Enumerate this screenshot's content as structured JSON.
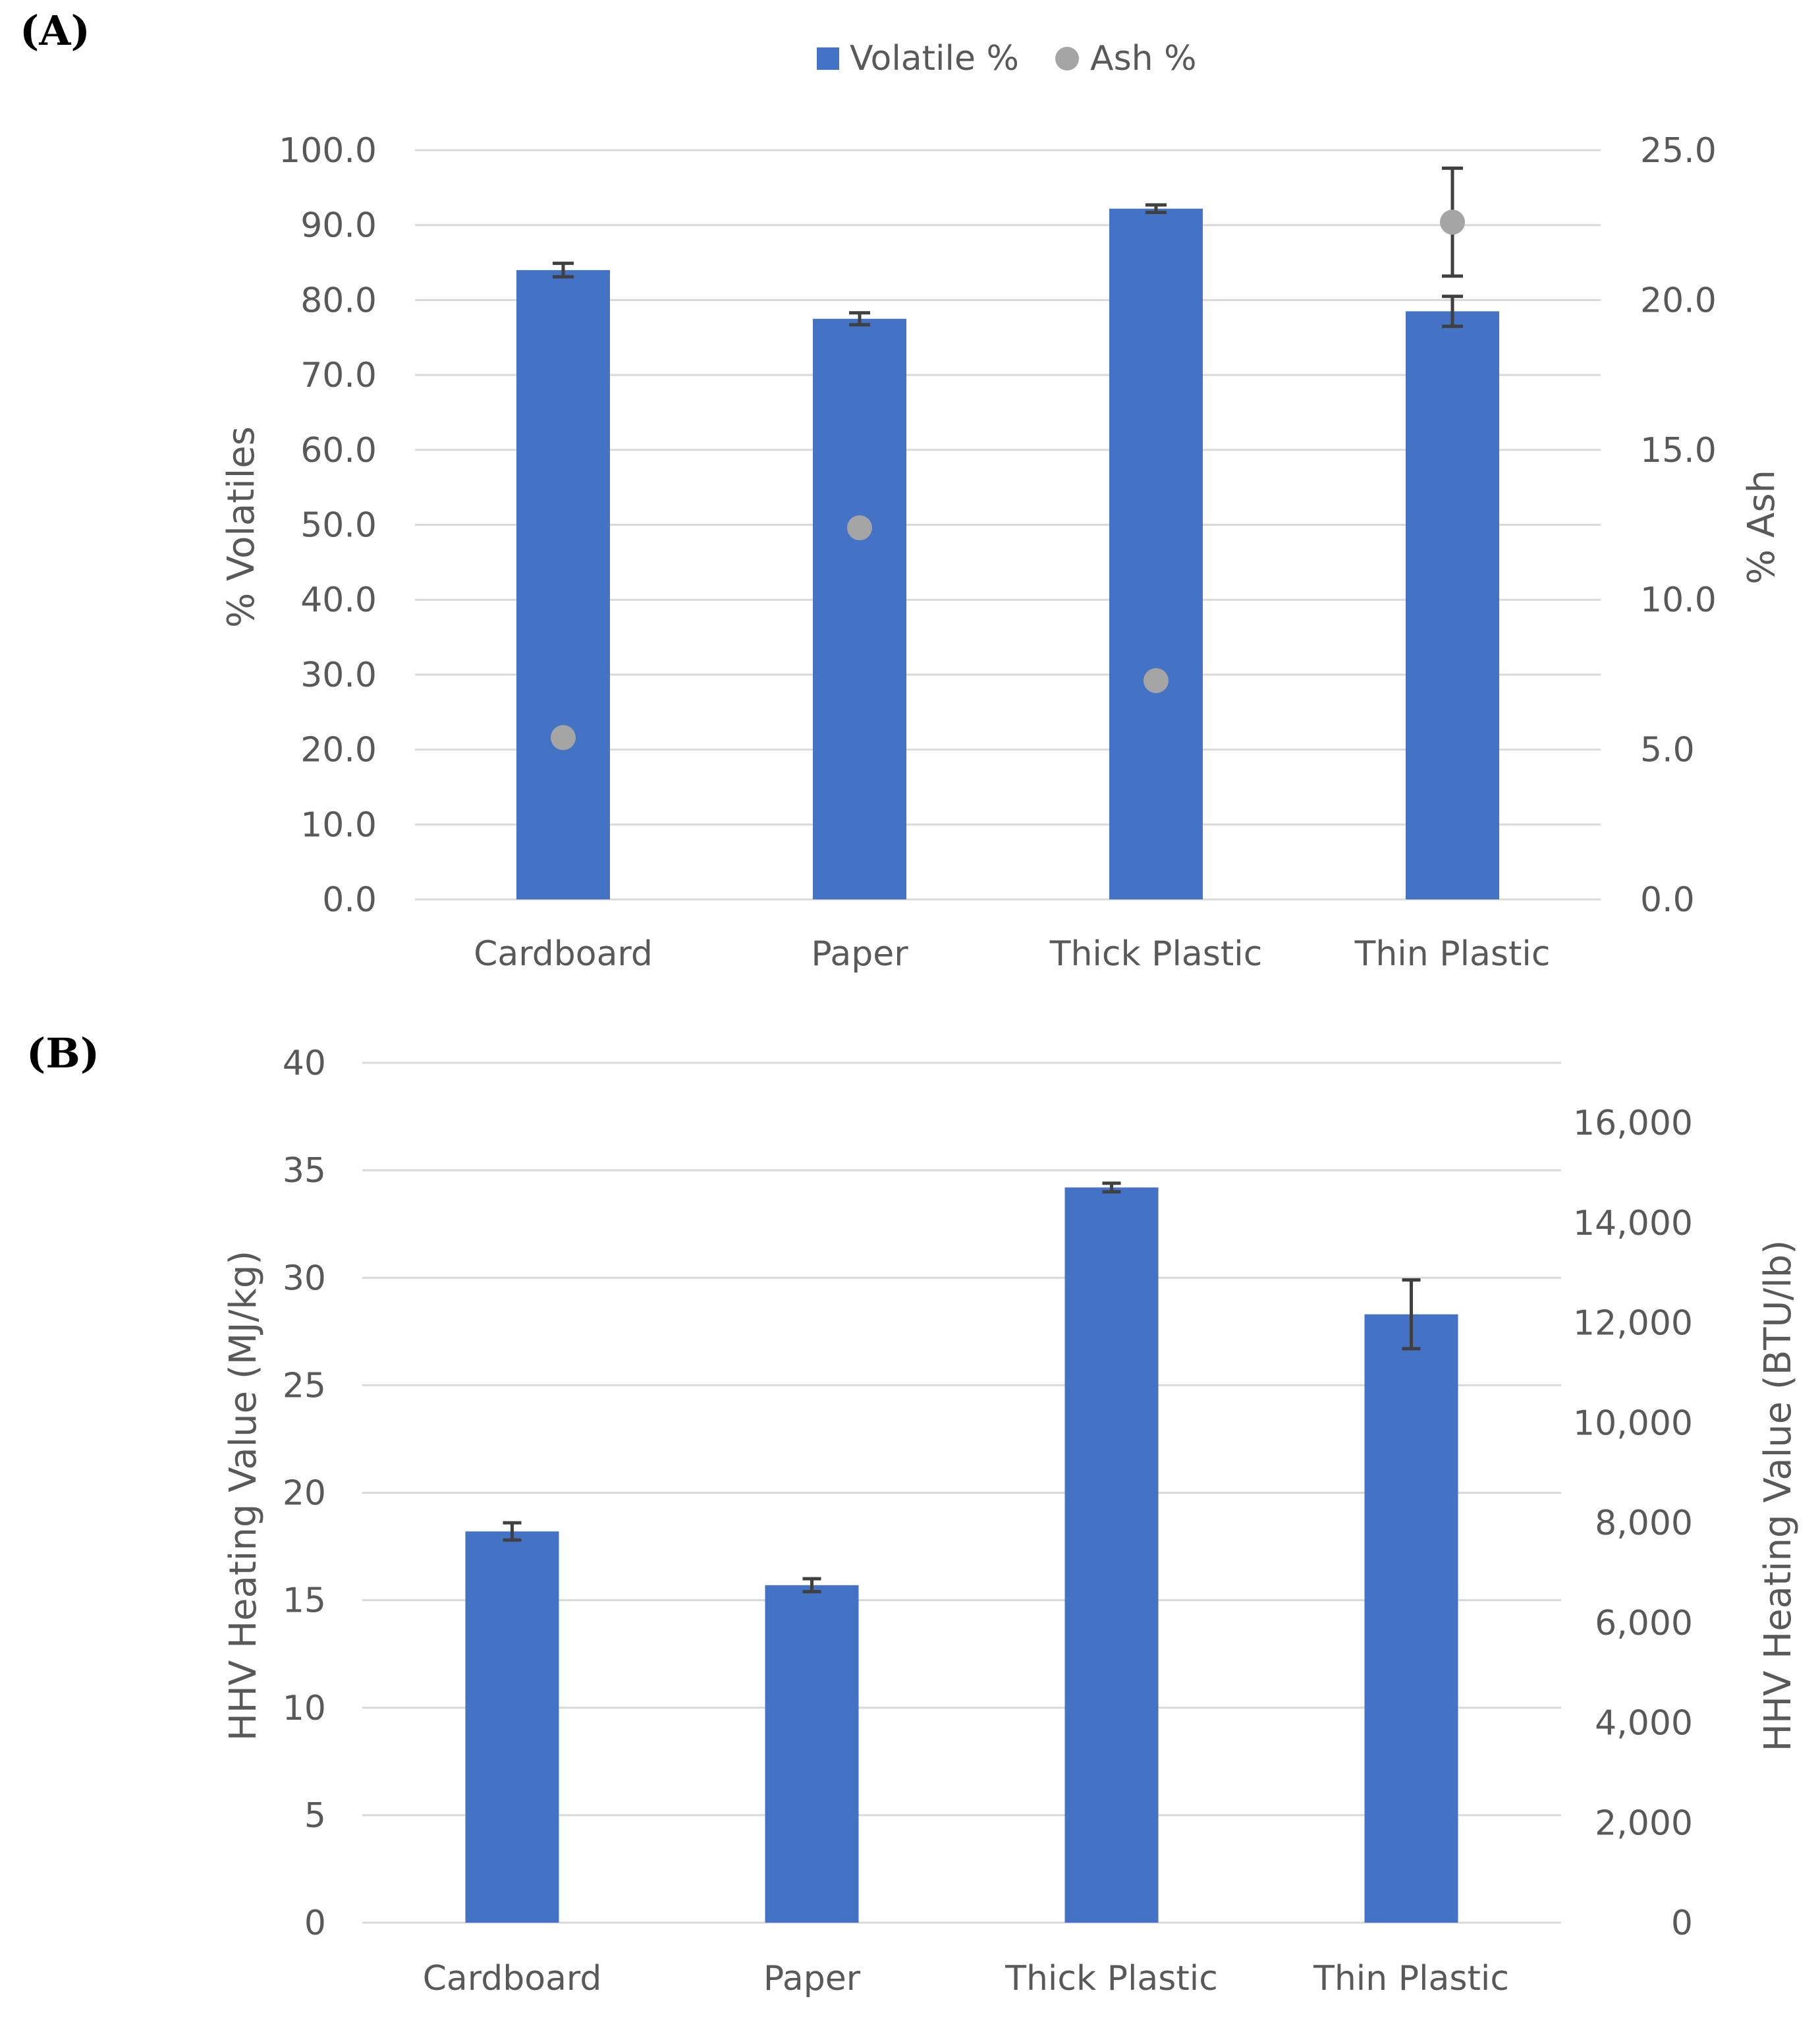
{
  "colors": {
    "bar": "#4472C4",
    "ash_marker": "#A5A5A5",
    "grid": "#D9D9D9",
    "text": "#595959",
    "error_bar": "#404040"
  },
  "chart_data": [
    {
      "type": "bar",
      "panel_label": "(A)",
      "categories": [
        "Cardboard",
        "Paper",
        "Thick Plastic",
        "Thin Plastic"
      ],
      "legend": {
        "placement": "top-center",
        "entries": [
          "Volatile %",
          "Ash %"
        ]
      },
      "series": [
        {
          "name": "Volatile %",
          "type": "bar",
          "axis": "left",
          "values": [
            84.0,
            77.5,
            92.2,
            78.5
          ],
          "error": [
            0.9,
            0.8,
            0.5,
            2.0
          ]
        },
        {
          "name": "Ash %",
          "type": "scatter",
          "axis": "right",
          "values": [
            5.4,
            12.4,
            7.3,
            22.6
          ],
          "error": [
            0,
            0,
            0,
            1.8
          ]
        }
      ],
      "ylabel": "% Volatiles",
      "ylim": [
        0,
        100
      ],
      "yticks": [
        "0.0",
        "10.0",
        "20.0",
        "30.0",
        "40.0",
        "50.0",
        "60.0",
        "70.0",
        "80.0",
        "90.0",
        "100.0"
      ],
      "y2label": "% Ash",
      "y2lim": [
        0,
        25
      ],
      "y2ticks": [
        "0.0",
        "5.0",
        "10.0",
        "15.0",
        "20.0",
        "25.0"
      ],
      "grid": true
    },
    {
      "type": "bar",
      "panel_label": "(B)",
      "categories": [
        "Cardboard",
        "Paper",
        "Thick Plastic",
        "Thin Plastic"
      ],
      "series": [
        {
          "type": "bar",
          "axis": "left",
          "values": [
            18.2,
            15.7,
            34.2,
            28.3
          ],
          "error": [
            0.4,
            0.3,
            0.2,
            1.6
          ]
        }
      ],
      "ylabel": "HHV Heating Value (MJ/kg)",
      "ylim": [
        0,
        40
      ],
      "yticks": [
        "0",
        "5",
        "10",
        "15",
        "20",
        "25",
        "30",
        "35",
        "40"
      ],
      "y2label": "HHV Heating Value (BTU/lb)",
      "y2lim": [
        0,
        17200
      ],
      "y2ticks": [
        "0",
        "2,000",
        "4,000",
        "6,000",
        "8,000",
        "10,000",
        "12,000",
        "14,000",
        "16,000"
      ],
      "grid": true
    }
  ]
}
